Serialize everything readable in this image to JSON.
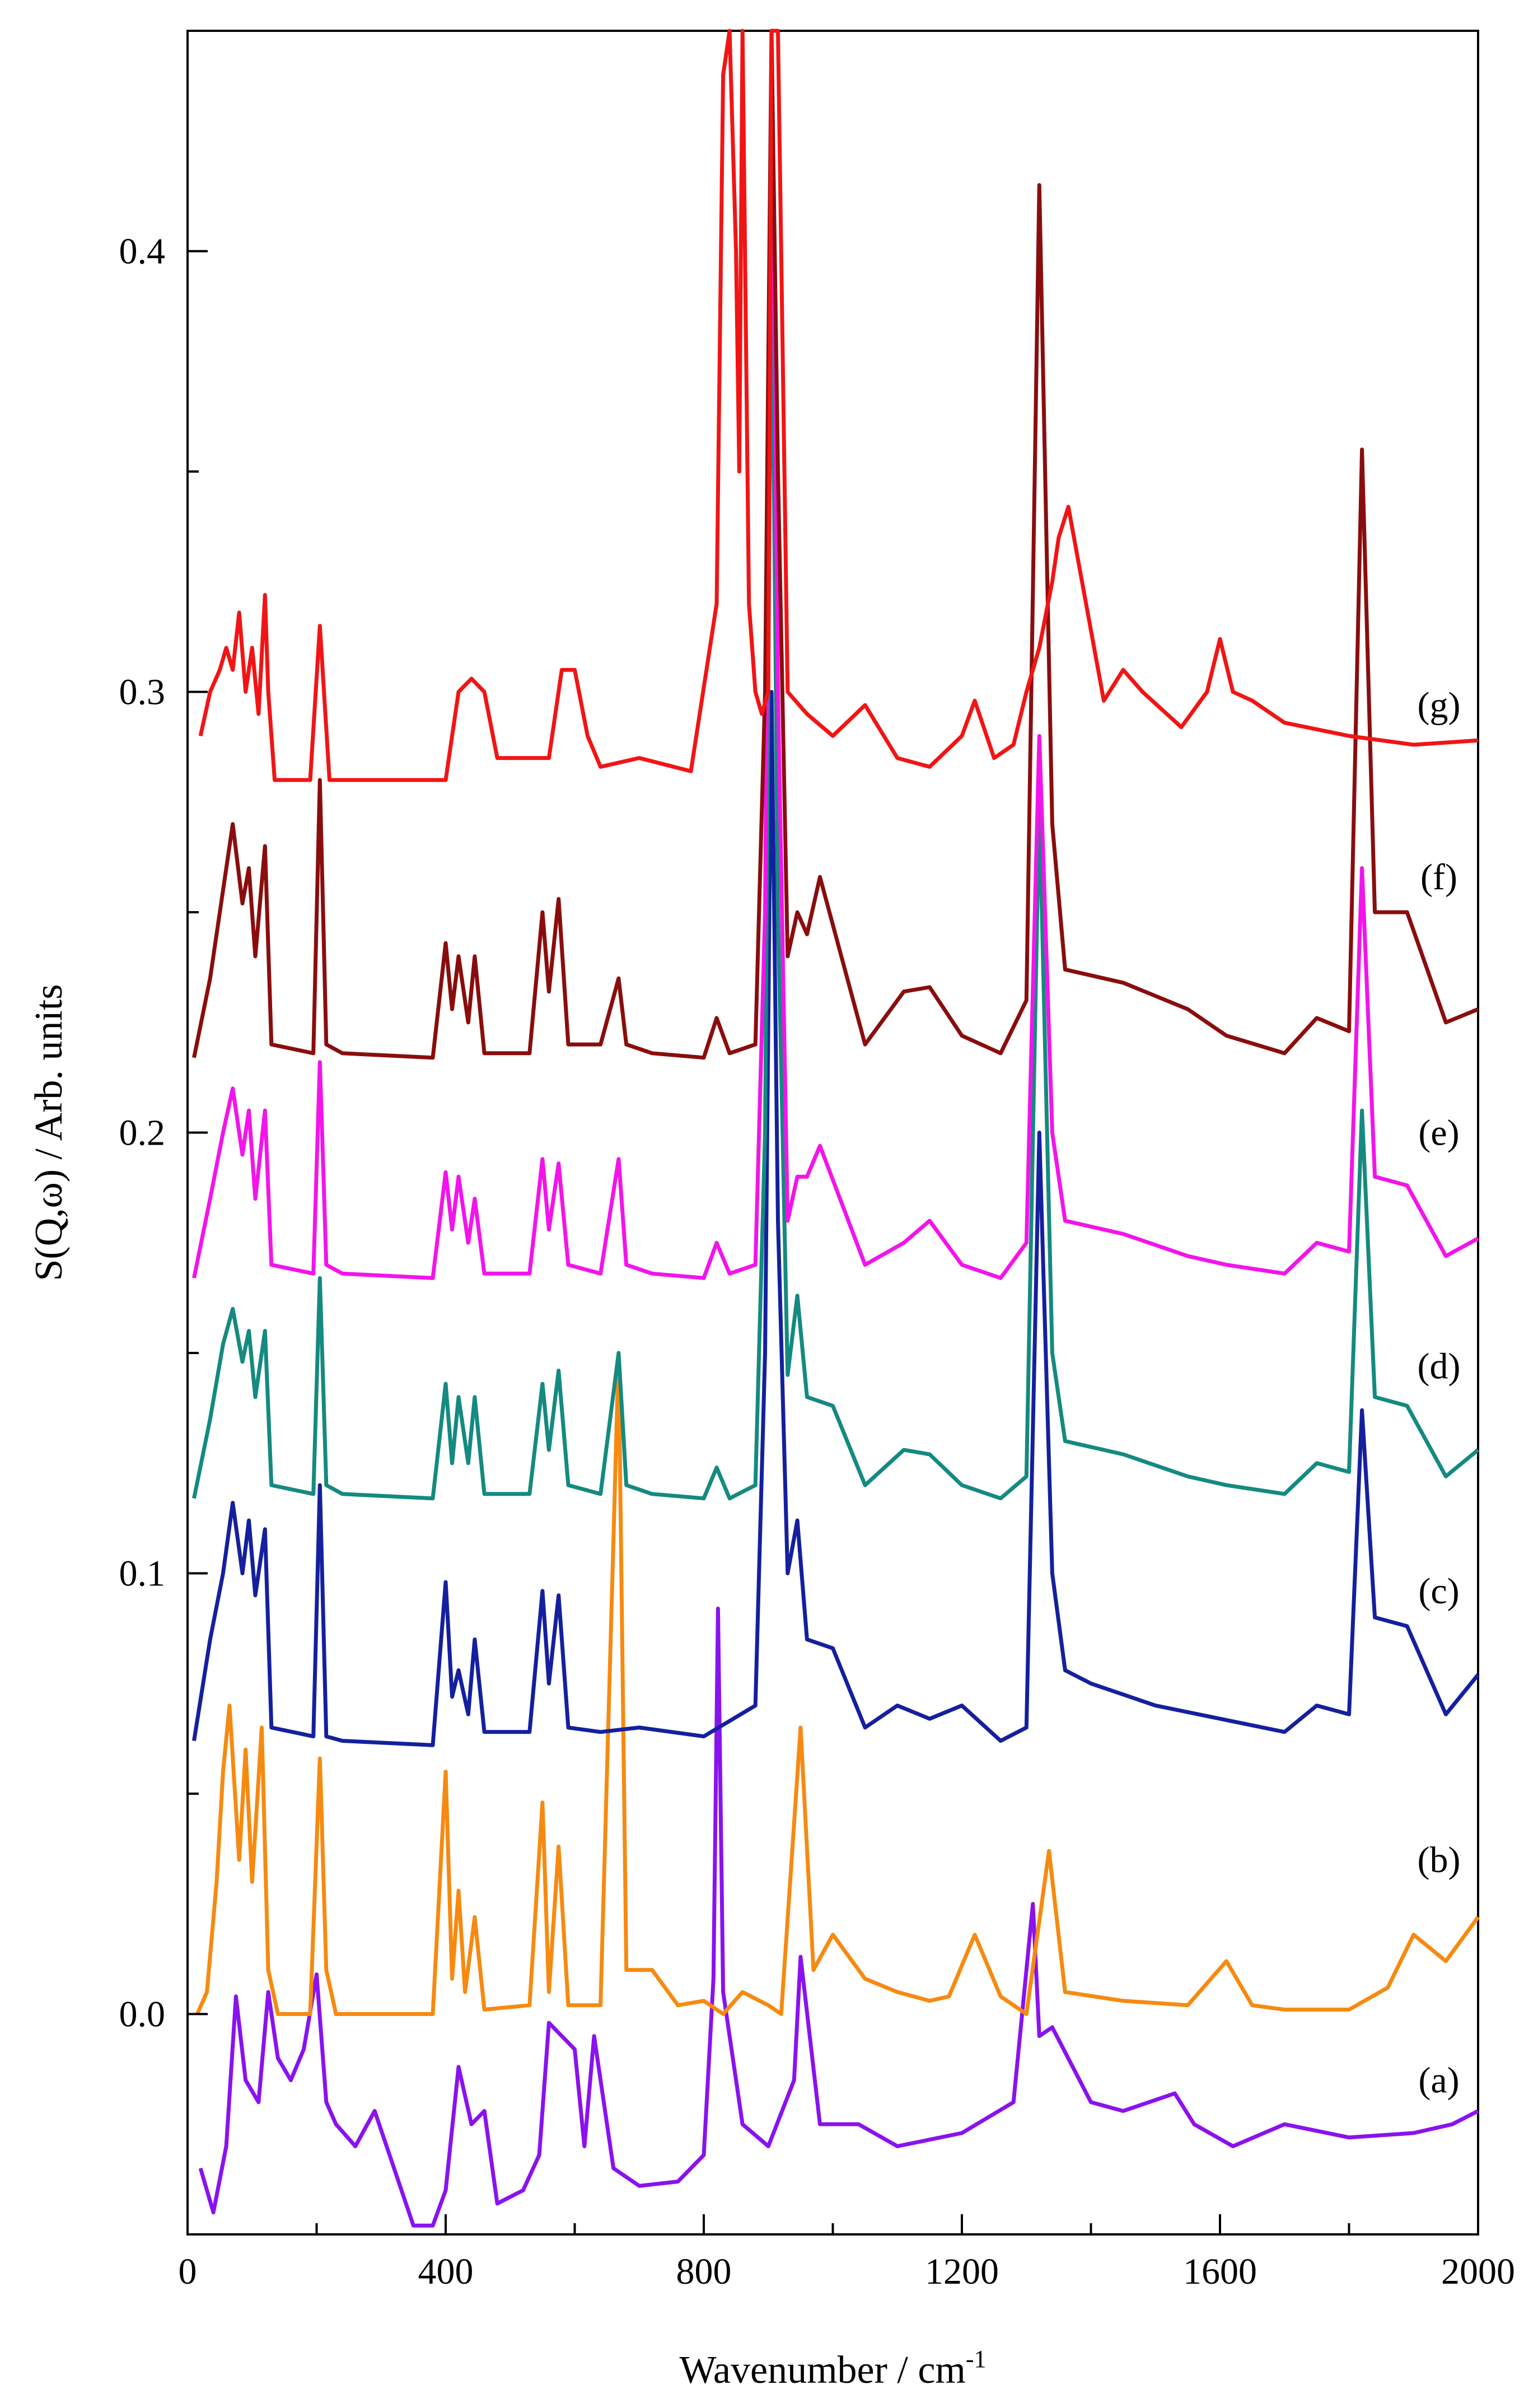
{
  "chart_data": {
    "type": "line",
    "title": "",
    "xlabel": "Wavenumber / cm",
    "xlabel_superscript": "-1",
    "ylabel": "S(Q,ω) / Arb. units",
    "xlim": [
      0,
      2000
    ],
    "ylim": [
      -0.05,
      0.45
    ],
    "x_ticks": [
      0,
      400,
      800,
      1200,
      1600,
      2000
    ],
    "x_tick_labels": [
      "0",
      "400",
      "800",
      "1200",
      "1600",
      "2000"
    ],
    "y_ticks": [
      0.0,
      0.1,
      0.2,
      0.3,
      0.4
    ],
    "y_tick_labels": [
      "0.0",
      "0.1",
      "0.2",
      "0.3",
      "0.4"
    ],
    "grid": false,
    "series": [
      {
        "name": "(a)",
        "color": "#8a12ee",
        "x": [
          20,
          40,
          60,
          75,
          90,
          110,
          125,
          140,
          160,
          180,
          200,
          215,
          230,
          260,
          290,
          320,
          350,
          380,
          400,
          420,
          440,
          460,
          480,
          520,
          545,
          560,
          580,
          600,
          615,
          630,
          660,
          700,
          760,
          800,
          815,
          822,
          830,
          860,
          900,
          940,
          950,
          980,
          1040,
          1100,
          1200,
          1280,
          1310,
          1320,
          1340,
          1400,
          1450,
          1530,
          1560,
          1620,
          1700,
          1800,
          1900,
          1960,
          2000
        ],
        "values": [
          -0.035,
          -0.045,
          -0.03,
          0.004,
          -0.015,
          -0.02,
          0.005,
          -0.01,
          -0.015,
          -0.008,
          0.009,
          -0.02,
          -0.025,
          -0.03,
          -0.022,
          -0.035,
          -0.048,
          -0.048,
          -0.04,
          -0.012,
          -0.025,
          -0.022,
          -0.043,
          -0.04,
          -0.032,
          -0.002,
          -0.005,
          -0.008,
          -0.03,
          -0.005,
          -0.035,
          -0.039,
          -0.038,
          -0.032,
          0.008,
          0.092,
          0.005,
          -0.025,
          -0.03,
          -0.015,
          0.013,
          -0.025,
          -0.025,
          -0.03,
          -0.027,
          -0.02,
          0.025,
          -0.005,
          -0.003,
          -0.02,
          -0.022,
          -0.018,
          -0.025,
          -0.03,
          -0.025,
          -0.028,
          -0.027,
          -0.025,
          -0.022
        ]
      },
      {
        "name": "(b)",
        "color": "#f68a10",
        "x": [
          15,
          30,
          45,
          55,
          65,
          80,
          90,
          100,
          115,
          125,
          140,
          190,
          205,
          215,
          230,
          380,
          400,
          410,
          420,
          430,
          445,
          460,
          530,
          550,
          560,
          575,
          590,
          640,
          668,
          680,
          720,
          760,
          800,
          830,
          860,
          900,
          920,
          950,
          970,
          1000,
          1050,
          1100,
          1150,
          1180,
          1220,
          1260,
          1300,
          1335,
          1360,
          1450,
          1550,
          1610,
          1650,
          1700,
          1800,
          1860,
          1900,
          1950,
          2000
        ],
        "values": [
          0.0,
          0.005,
          0.03,
          0.055,
          0.07,
          0.035,
          0.06,
          0.03,
          0.065,
          0.01,
          0.0,
          0.0,
          0.058,
          0.01,
          0.0,
          0.0,
          0.055,
          0.008,
          0.028,
          0.005,
          0.022,
          0.001,
          0.002,
          0.048,
          0.005,
          0.038,
          0.002,
          0.002,
          0.15,
          0.01,
          0.01,
          0.002,
          0.003,
          0.0,
          0.005,
          0.002,
          0.0,
          0.065,
          0.01,
          0.018,
          0.008,
          0.005,
          0.003,
          0.004,
          0.018,
          0.004,
          0.0,
          0.037,
          0.005,
          0.003,
          0.002,
          0.012,
          0.002,
          0.001,
          0.001,
          0.006,
          0.018,
          0.012,
          0.022
        ]
      },
      {
        "name": "(c)",
        "color": "#14209e",
        "x": [
          10,
          35,
          55,
          70,
          85,
          95,
          105,
          120,
          130,
          195,
          205,
          215,
          240,
          380,
          400,
          410,
          420,
          435,
          445,
          460,
          530,
          550,
          560,
          575,
          590,
          640,
          700,
          800,
          880,
          895,
          905,
          915,
          930,
          945,
          960,
          1000,
          1050,
          1100,
          1150,
          1200,
          1260,
          1300,
          1320,
          1340,
          1360,
          1400,
          1500,
          1600,
          1700,
          1750,
          1800,
          1820,
          1840,
          1890,
          1950,
          2000
        ],
        "values": [
          0.062,
          0.085,
          0.1,
          0.116,
          0.1,
          0.112,
          0.095,
          0.11,
          0.065,
          0.063,
          0.12,
          0.063,
          0.062,
          0.061,
          0.098,
          0.072,
          0.078,
          0.068,
          0.085,
          0.064,
          0.064,
          0.096,
          0.075,
          0.095,
          0.065,
          0.064,
          0.065,
          0.063,
          0.07,
          0.15,
          0.3,
          0.18,
          0.1,
          0.112,
          0.085,
          0.083,
          0.065,
          0.07,
          0.067,
          0.07,
          0.062,
          0.065,
          0.2,
          0.1,
          0.078,
          0.075,
          0.07,
          0.067,
          0.064,
          0.07,
          0.068,
          0.137,
          0.09,
          0.088,
          0.068,
          0.077
        ]
      },
      {
        "name": "(d)",
        "color": "#148a80",
        "x": [
          10,
          35,
          55,
          70,
          85,
          95,
          105,
          120,
          130,
          195,
          205,
          215,
          240,
          380,
          400,
          410,
          420,
          435,
          445,
          460,
          530,
          550,
          560,
          575,
          590,
          640,
          668,
          680,
          720,
          800,
          820,
          840,
          880,
          895,
          905,
          915,
          930,
          945,
          960,
          1000,
          1050,
          1110,
          1150,
          1200,
          1260,
          1300,
          1320,
          1340,
          1360,
          1450,
          1550,
          1610,
          1700,
          1750,
          1800,
          1820,
          1840,
          1890,
          1950,
          2000
        ],
        "values": [
          0.117,
          0.135,
          0.152,
          0.16,
          0.148,
          0.155,
          0.14,
          0.155,
          0.12,
          0.118,
          0.167,
          0.12,
          0.118,
          0.117,
          0.143,
          0.125,
          0.14,
          0.125,
          0.14,
          0.118,
          0.118,
          0.143,
          0.128,
          0.146,
          0.12,
          0.118,
          0.15,
          0.12,
          0.118,
          0.117,
          0.124,
          0.117,
          0.12,
          0.2,
          0.405,
          0.25,
          0.145,
          0.163,
          0.14,
          0.138,
          0.12,
          0.128,
          0.127,
          0.12,
          0.117,
          0.122,
          0.275,
          0.15,
          0.13,
          0.127,
          0.122,
          0.12,
          0.118,
          0.125,
          0.123,
          0.205,
          0.14,
          0.138,
          0.122,
          0.128
        ]
      },
      {
        "name": "(e)",
        "color": "#f214ea",
        "x": [
          10,
          35,
          55,
          70,
          85,
          95,
          105,
          120,
          130,
          195,
          205,
          215,
          240,
          380,
          400,
          410,
          420,
          435,
          445,
          460,
          530,
          550,
          560,
          575,
          590,
          640,
          668,
          680,
          720,
          800,
          820,
          840,
          880,
          895,
          905,
          915,
          930,
          945,
          960,
          980,
          1050,
          1110,
          1150,
          1200,
          1260,
          1300,
          1320,
          1340,
          1360,
          1450,
          1550,
          1610,
          1700,
          1750,
          1800,
          1820,
          1840,
          1890,
          1950,
          2000
        ],
        "values": [
          0.167,
          0.185,
          0.2,
          0.21,
          0.195,
          0.205,
          0.185,
          0.205,
          0.17,
          0.168,
          0.216,
          0.17,
          0.168,
          0.167,
          0.191,
          0.178,
          0.19,
          0.175,
          0.185,
          0.168,
          0.168,
          0.194,
          0.178,
          0.193,
          0.17,
          0.168,
          0.194,
          0.17,
          0.168,
          0.167,
          0.175,
          0.168,
          0.17,
          0.25,
          0.445,
          0.3,
          0.18,
          0.19,
          0.19,
          0.197,
          0.17,
          0.175,
          0.18,
          0.17,
          0.167,
          0.175,
          0.29,
          0.2,
          0.18,
          0.177,
          0.172,
          0.17,
          0.168,
          0.175,
          0.173,
          0.26,
          0.19,
          0.188,
          0.172,
          0.176
        ]
      },
      {
        "name": "(f)",
        "color": "#8a0d0d",
        "x": [
          10,
          35,
          55,
          70,
          85,
          95,
          105,
          120,
          130,
          195,
          205,
          215,
          240,
          380,
          400,
          410,
          420,
          435,
          445,
          460,
          530,
          550,
          560,
          575,
          590,
          640,
          668,
          680,
          720,
          800,
          820,
          840,
          880,
          895,
          905,
          915,
          930,
          945,
          960,
          980,
          1050,
          1110,
          1150,
          1200,
          1260,
          1300,
          1320,
          1340,
          1360,
          1450,
          1550,
          1610,
          1700,
          1750,
          1800,
          1820,
          1840,
          1890,
          1950,
          2000
        ],
        "values": [
          0.217,
          0.235,
          0.255,
          0.27,
          0.252,
          0.26,
          0.24,
          0.265,
          0.22,
          0.218,
          0.28,
          0.22,
          0.218,
          0.217,
          0.243,
          0.228,
          0.24,
          0.225,
          0.24,
          0.218,
          0.218,
          0.25,
          0.232,
          0.253,
          0.22,
          0.22,
          0.235,
          0.22,
          0.218,
          0.217,
          0.226,
          0.218,
          0.22,
          0.3,
          0.46,
          0.35,
          0.24,
          0.25,
          0.245,
          0.258,
          0.22,
          0.232,
          0.233,
          0.222,
          0.218,
          0.23,
          0.415,
          0.27,
          0.237,
          0.234,
          0.228,
          0.222,
          0.218,
          0.226,
          0.223,
          0.355,
          0.25,
          0.25,
          0.225,
          0.228
        ]
      },
      {
        "name": "(g)",
        "color": "#f21414",
        "x": [
          20,
          35,
          50,
          60,
          70,
          80,
          90,
          100,
          110,
          120,
          125,
          135,
          190,
          205,
          220,
          260,
          300,
          400,
          420,
          440,
          460,
          480,
          560,
          580,
          600,
          620,
          640,
          700,
          780,
          820,
          830,
          840,
          850,
          855,
          860,
          870,
          880,
          890,
          900,
          905,
          915,
          930,
          960,
          1000,
          1050,
          1100,
          1150,
          1200,
          1220,
          1250,
          1280,
          1300,
          1320,
          1340,
          1350,
          1365,
          1380,
          1420,
          1450,
          1480,
          1540,
          1580,
          1600,
          1620,
          1650,
          1700,
          1800,
          1900,
          2000
        ],
        "values": [
          0.29,
          0.3,
          0.305,
          0.31,
          0.305,
          0.318,
          0.3,
          0.31,
          0.295,
          0.322,
          0.3,
          0.28,
          0.28,
          0.315,
          0.28,
          0.28,
          0.28,
          0.28,
          0.3,
          0.303,
          0.3,
          0.285,
          0.285,
          0.305,
          0.305,
          0.29,
          0.283,
          0.285,
          0.282,
          0.32,
          0.44,
          0.46,
          0.4,
          0.35,
          0.46,
          0.32,
          0.3,
          0.295,
          0.3,
          0.46,
          0.46,
          0.3,
          0.295,
          0.29,
          0.297,
          0.285,
          0.283,
          0.29,
          0.298,
          0.285,
          0.288,
          0.3,
          0.31,
          0.325,
          0.335,
          0.342,
          0.33,
          0.298,
          0.305,
          0.3,
          0.292,
          0.3,
          0.312,
          0.3,
          0.298,
          0.293,
          0.29,
          0.288,
          0.289
        ]
      }
    ],
    "labels": [
      "(a)",
      "(b)",
      "(c)",
      "(d)",
      "(e)",
      "(f)",
      "(g)"
    ],
    "label_values": [
      -0.015,
      0.035,
      0.096,
      0.147,
      0.2,
      0.258,
      0.297
    ]
  }
}
